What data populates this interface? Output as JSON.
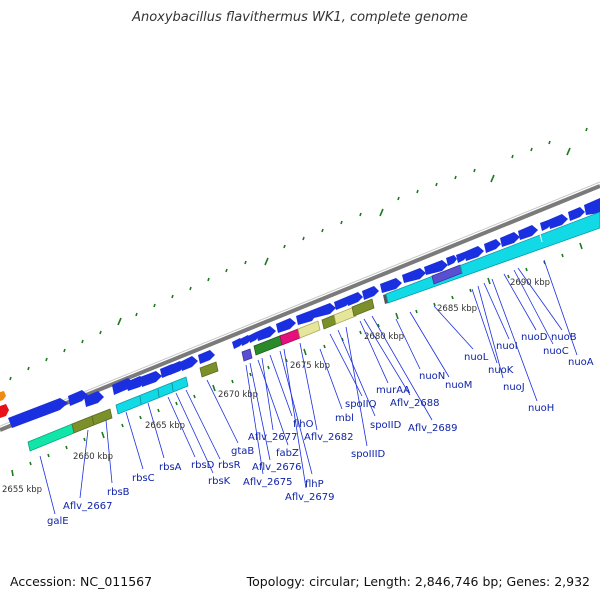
{
  "title": "Anoxybacillus flavithermus WK1, complete genome",
  "footer": {
    "accession": "Accession: NC_011567",
    "summary": "Topology: circular; Length: 2,846,746 bp; Genes: 2,932"
  },
  "colors": {
    "backbone": "#7a7a7a",
    "gene_blue": "#1a2fe0",
    "cyan": "#11d9e6",
    "label": "#0f23a8",
    "tick": "#1f7a1f"
  },
  "kbp_labels": [
    "2655 kbp",
    "2660 kbp",
    "2665 kbp",
    "2670 kbp",
    "2675 kbp",
    "2680 kbp",
    "2685 kbp",
    "2690 kbp"
  ],
  "gene_labels": [
    "galE",
    "Aflv_2667",
    "rbsB",
    "rbsC",
    "rbsA",
    "rbsD",
    "rbsK",
    "rbsR",
    "gtaB",
    "Aflv_2675",
    "Aflv_2676",
    "fabZ",
    "Aflv_2677",
    "flhO",
    "flhP",
    "Aflv_2679",
    "Aflv_2682",
    "mbl",
    "spoIIQ",
    "spoIID",
    "spoIIID",
    "murAA",
    "Aflv_2688",
    "Aflv_2689",
    "nuoN",
    "nuoM",
    "nuoL",
    "nuoK",
    "nuoJ",
    "nuoI",
    "nuoH",
    "nuoD",
    "nuoC",
    "nuoB",
    "nuoA"
  ]
}
